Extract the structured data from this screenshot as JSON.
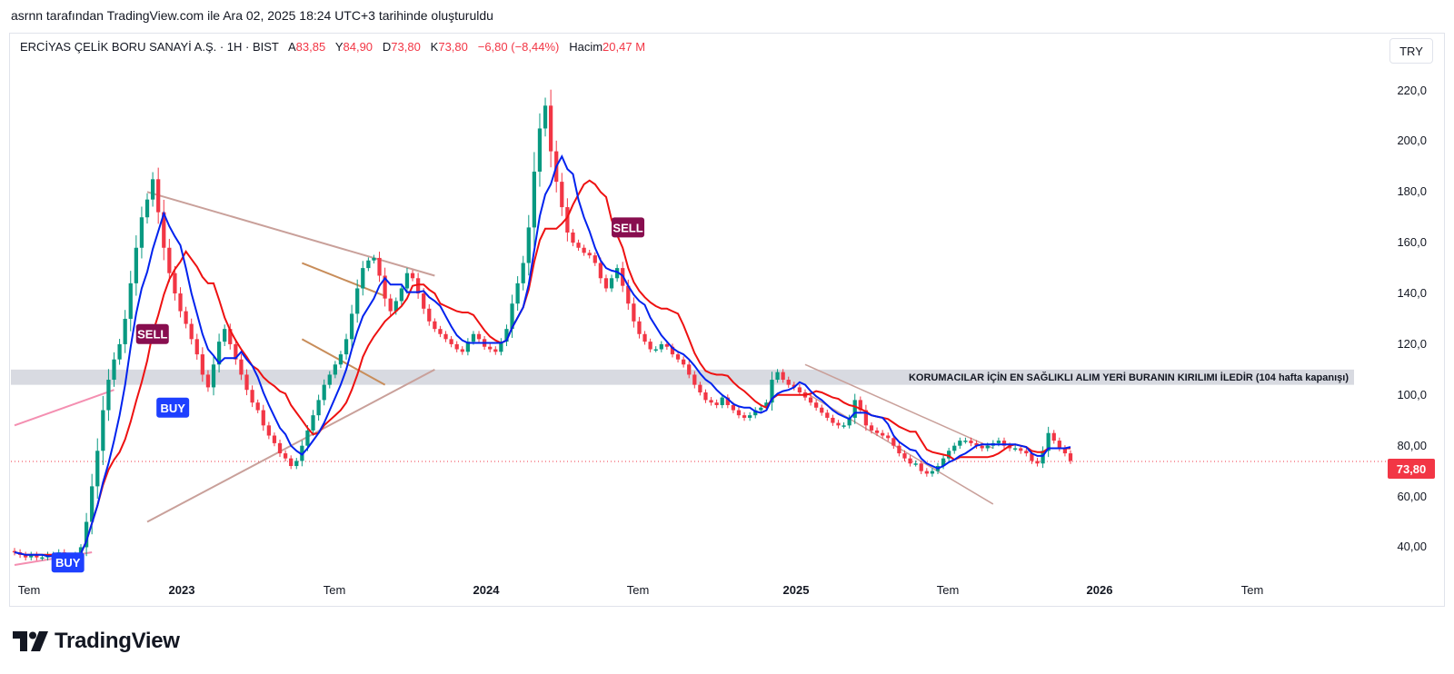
{
  "header": {
    "attribution": "asrnn tarafından TradingView.com ile Ara 02, 2025 18:24 UTC+3 tarihinde oluşturuldu"
  },
  "legend": {
    "symbol": "ERCİYAS ÇELİK BORU SANAYİ A.Ş. · 1H · BIST",
    "open_label": "A",
    "open": "83,85",
    "high_label": "Y",
    "high": "84,90",
    "low_label": "D",
    "low": "73,80",
    "close_label": "K",
    "close": "73,80",
    "change": "−6,80 (−8,44%)",
    "volume_label": "Hacim",
    "volume": "20,47 M"
  },
  "currency": "TRY",
  "last_price_tag": "73,80",
  "brand": "TradingView",
  "colors": {
    "up": "#089981",
    "down": "#f23645",
    "fast_line": "#0022ee",
    "slow_line": "#ee1111",
    "zone": "#d1d4dc",
    "trendline": "#c9a09a",
    "channel": "#c88d5a",
    "pink": "#f48fb1",
    "sell_tag": "#880e4f",
    "buy_tag": "#1e40ff",
    "axis_text": "#131722"
  },
  "chart_data": {
    "type": "candlestick",
    "y_axis": {
      "ticks": [
        "220,0",
        "200,0",
        "180,0",
        "160,0",
        "140,0",
        "120,0",
        "100,0",
        "80,00",
        "60,00",
        "40,00"
      ],
      "range": [
        33,
        232
      ]
    },
    "x_axis": {
      "labels": [
        "Tem",
        "2023",
        "Tem",
        "2024",
        "Tem",
        "2025",
        "Tem",
        "2026",
        "Tem"
      ]
    },
    "last_price": 73.8,
    "annotations": {
      "zone_text": "KORUMACILAR İÇİN EN SAĞLIKLI ALIM YERİ BURANIN KIRILIMI İLEDİR (104 hafta kapanışı)",
      "zone_range": [
        104,
        110
      ],
      "signals": [
        {
          "text": "SELL",
          "type": "sell"
        },
        {
          "text": "BUY",
          "type": "buy"
        },
        {
          "text": "SELL",
          "type": "sell"
        },
        {
          "text": "BUY",
          "type": "buy"
        }
      ]
    },
    "series": [
      {
        "name": "Price",
        "notes": "weekly candles, approximate closes",
        "values": [
          38,
          37,
          36,
          37,
          36,
          36,
          37,
          37,
          38,
          36,
          35,
          37,
          40,
          50,
          64,
          78,
          94,
          106,
          114,
          120,
          130,
          144,
          158,
          170,
          177,
          185,
          172,
          158,
          148,
          140,
          133,
          128,
          122,
          116,
          108,
          103,
          112,
          121,
          126,
          120,
          114,
          108,
          102,
          97,
          94,
          88,
          84,
          81,
          77,
          75,
          72,
          74,
          80,
          86,
          92,
          98,
          104,
          108,
          112,
          116,
          122,
          132,
          142,
          150,
          153,
          154,
          147,
          138,
          133,
          137,
          142,
          148,
          146,
          140,
          134,
          129,
          126,
          124,
          122,
          120,
          118,
          117,
          121,
          124,
          122,
          119,
          118,
          117,
          121,
          126,
          136,
          144,
          152,
          166,
          188,
          205,
          214,
          196,
          184,
          174,
          164,
          160,
          158,
          156,
          155,
          152,
          146,
          142,
          146,
          150,
          143,
          136,
          129,
          124,
          121,
          118,
          118,
          120,
          119,
          116,
          114,
          112,
          108,
          104,
          101,
          98,
          97,
          96,
          99,
          96,
          94,
          92,
          91,
          92,
          94,
          95,
          97,
          106,
          109,
          106,
          104,
          103,
          101,
          99,
          97,
          95,
          93,
          91,
          89,
          88,
          88,
          91,
          98,
          94,
          88,
          86,
          85,
          84,
          83,
          80,
          77,
          75,
          73,
          73,
          70,
          69,
          70,
          72,
          75,
          78,
          80,
          82,
          82,
          81,
          80,
          79,
          80,
          81,
          82,
          80,
          79,
          79,
          78,
          77,
          74,
          73,
          78,
          85,
          82,
          79,
          77,
          74
        ]
      }
    ]
  }
}
